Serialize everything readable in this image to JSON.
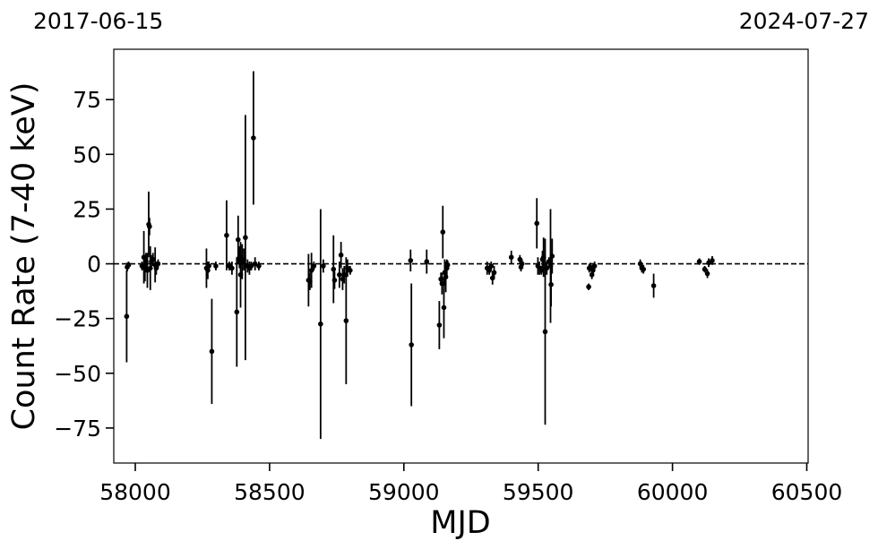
{
  "chart_data": {
    "type": "scatter",
    "title": "",
    "xlabel": "MJD",
    "ylabel": "Count Rate (7-40 keV)",
    "top_left_date": "2017-06-15",
    "top_right_date": "2024-07-27",
    "xlim": [
      57920,
      60505
    ],
    "ylim": [
      -91,
      98
    ],
    "xticks": [
      58000,
      58500,
      59000,
      59500,
      60000,
      60500
    ],
    "xtick_labels": [
      "58000",
      "58500",
      "59000",
      "59500",
      "60000",
      "60500"
    ],
    "yticks": [
      -75,
      -50,
      -25,
      0,
      25,
      50,
      75
    ],
    "ytick_labels": [
      "−75",
      "−50",
      "−25",
      "0",
      "25",
      "50",
      "75"
    ],
    "reference_line": {
      "y": 0,
      "style": "dashed"
    },
    "grid": false,
    "legend": "none",
    "marker_color": "#000000",
    "points": [
      {
        "x": 57968,
        "y": -24,
        "err": 21
      },
      {
        "x": 57970,
        "y": -1.5,
        "err": 2
      },
      {
        "x": 57975,
        "y": -0.5,
        "err": 1.5
      },
      {
        "x": 58025,
        "y": -1,
        "err": 2
      },
      {
        "x": 58032,
        "y": 3,
        "err": 12
      },
      {
        "x": 58036,
        "y": -2,
        "err": 6
      },
      {
        "x": 58040,
        "y": 1,
        "err": 4
      },
      {
        "x": 58045,
        "y": -3,
        "err": 8
      },
      {
        "x": 58050,
        "y": 18,
        "err": 15
      },
      {
        "x": 58053,
        "y": 17,
        "err": 4
      },
      {
        "x": 58056,
        "y": -2,
        "err": 10
      },
      {
        "x": 58060,
        "y": 1,
        "err": 3
      },
      {
        "x": 58066,
        "y": 2,
        "err": 3
      },
      {
        "x": 58074,
        "y": -0.5,
        "err": 8
      },
      {
        "x": 58078,
        "y": -2,
        "err": 3
      },
      {
        "x": 58085,
        "y": 0,
        "err": 2
      },
      {
        "x": 58265,
        "y": -2,
        "err": 9
      },
      {
        "x": 58270,
        "y": -3,
        "err": 4
      },
      {
        "x": 58274,
        "y": -1,
        "err": 2
      },
      {
        "x": 58285,
        "y": -40,
        "err": 24
      },
      {
        "x": 58300,
        "y": -1,
        "err": 2
      },
      {
        "x": 58340,
        "y": 13,
        "err": 16
      },
      {
        "x": 58350,
        "y": -1,
        "err": 2
      },
      {
        "x": 58360,
        "y": -2,
        "err": 3
      },
      {
        "x": 58378,
        "y": -22,
        "err": 25
      },
      {
        "x": 58383,
        "y": 11,
        "err": 11
      },
      {
        "x": 58388,
        "y": 3,
        "err": 5
      },
      {
        "x": 58392,
        "y": -5,
        "err": 15
      },
      {
        "x": 58398,
        "y": 1,
        "err": 8
      },
      {
        "x": 58404,
        "y": 2,
        "err": 5
      },
      {
        "x": 58410,
        "y": 12,
        "err": 56
      },
      {
        "x": 58418,
        "y": -1,
        "err": 3
      },
      {
        "x": 58425,
        "y": -2,
        "err": 3
      },
      {
        "x": 58432,
        "y": -1,
        "err": 2
      },
      {
        "x": 58440,
        "y": 57.5,
        "err": 30.5
      },
      {
        "x": 58446,
        "y": 0,
        "err": 3
      },
      {
        "x": 58460,
        "y": -1,
        "err": 2
      },
      {
        "x": 58645,
        "y": -7.5,
        "err": 12
      },
      {
        "x": 58650,
        "y": -8,
        "err": 4
      },
      {
        "x": 58656,
        "y": -3,
        "err": 8
      },
      {
        "x": 58665,
        "y": -1,
        "err": 2
      },
      {
        "x": 58690,
        "y": -27.5,
        "err": 52.5
      },
      {
        "x": 58700,
        "y": -1,
        "err": 3
      },
      {
        "x": 58738,
        "y": -2.5,
        "err": 15.5
      },
      {
        "x": 58742,
        "y": -7.5,
        "err": 4
      },
      {
        "x": 58760,
        "y": -5,
        "err": 6
      },
      {
        "x": 58766,
        "y": 4,
        "err": 6
      },
      {
        "x": 58772,
        "y": -7,
        "err": 5
      },
      {
        "x": 58778,
        "y": -5,
        "err": 4
      },
      {
        "x": 58785,
        "y": -26,
        "err": 29
      },
      {
        "x": 58790,
        "y": -2,
        "err": 4
      },
      {
        "x": 58800,
        "y": -3,
        "err": 2
      },
      {
        "x": 59025,
        "y": 1.5,
        "err": 5
      },
      {
        "x": 59028,
        "y": -37,
        "err": 28
      },
      {
        "x": 59085,
        "y": 1,
        "err": 5.5
      },
      {
        "x": 59132,
        "y": -28,
        "err": 11
      },
      {
        "x": 59138,
        "y": -7,
        "err": 3
      },
      {
        "x": 59142,
        "y": -9,
        "err": 5
      },
      {
        "x": 59145,
        "y": 14.5,
        "err": 12
      },
      {
        "x": 59149,
        "y": -20,
        "err": 14
      },
      {
        "x": 59152,
        "y": -4,
        "err": 6
      },
      {
        "x": 59156,
        "y": -6,
        "err": 7
      },
      {
        "x": 59160,
        "y": -2,
        "err": 4
      },
      {
        "x": 59163,
        "y": -0.5,
        "err": 2
      },
      {
        "x": 59310,
        "y": -2,
        "err": 3
      },
      {
        "x": 59318,
        "y": -3,
        "err": 2
      },
      {
        "x": 59325,
        "y": -1,
        "err": 2
      },
      {
        "x": 59330,
        "y": -6.5,
        "err": 3
      },
      {
        "x": 59336,
        "y": -4,
        "err": 3
      },
      {
        "x": 59400,
        "y": 3,
        "err": 3
      },
      {
        "x": 59432,
        "y": 2,
        "err": 2
      },
      {
        "x": 59436,
        "y": -1.5,
        "err": 2
      },
      {
        "x": 59440,
        "y": 0,
        "err": 2
      },
      {
        "x": 59495,
        "y": 18.5,
        "err": 11.5
      },
      {
        "x": 59499,
        "y": -1,
        "err": 4
      },
      {
        "x": 59505,
        "y": -2,
        "err": 3
      },
      {
        "x": 59512,
        "y": -3,
        "err": 2
      },
      {
        "x": 59516,
        "y": 2,
        "err": 4
      },
      {
        "x": 59520,
        "y": 3,
        "err": 9
      },
      {
        "x": 59526,
        "y": -31,
        "err": 42.5
      },
      {
        "x": 59532,
        "y": -2,
        "err": 3
      },
      {
        "x": 59540,
        "y": 1,
        "err": 2
      },
      {
        "x": 59546,
        "y": -1,
        "err": 26
      },
      {
        "x": 59548,
        "y": -9.5,
        "err": 10
      },
      {
        "x": 59552,
        "y": 3.5,
        "err": 8
      },
      {
        "x": 59688,
        "y": -10.5,
        "err": 1.5
      },
      {
        "x": 59690,
        "y": -2,
        "err": 2
      },
      {
        "x": 59694,
        "y": -1.5,
        "err": 2
      },
      {
        "x": 59700,
        "y": -5,
        "err": 2
      },
      {
        "x": 59704,
        "y": -3,
        "err": 2
      },
      {
        "x": 59710,
        "y": -1,
        "err": 2
      },
      {
        "x": 59880,
        "y": 0,
        "err": 2
      },
      {
        "x": 59886,
        "y": -2,
        "err": 2
      },
      {
        "x": 59892,
        "y": -2.5,
        "err": 2
      },
      {
        "x": 59930,
        "y": -10,
        "err": 5.5
      },
      {
        "x": 60100,
        "y": 1,
        "err": 1.5
      },
      {
        "x": 60120,
        "y": -2.5,
        "err": 1.5
      },
      {
        "x": 60130,
        "y": -4.5,
        "err": 2
      },
      {
        "x": 60135,
        "y": 0.5,
        "err": 2
      },
      {
        "x": 60148,
        "y": 1.5,
        "err": 2
      }
    ]
  }
}
